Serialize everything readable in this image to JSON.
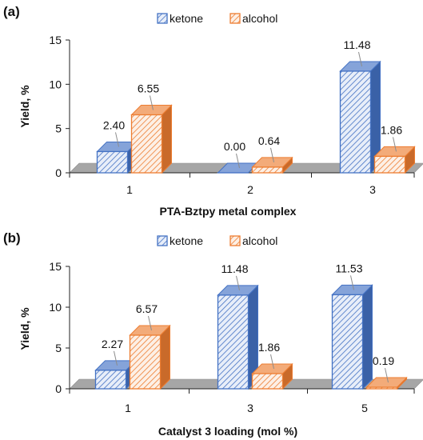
{
  "colors": {
    "ketone": "#4472C4",
    "alcohol": "#ED7D31",
    "floor": "#A6A6A6"
  },
  "chart_data": [
    {
      "type": "bar",
      "panel_label": "(a)",
      "xlabel": "PTA-Bztpy metal complex",
      "ylabel": "Yield, %",
      "ylim": [
        0,
        15
      ],
      "yticks": [
        "0",
        "5",
        "10",
        "15"
      ],
      "categories": [
        "1",
        "2",
        "3"
      ],
      "legend_position": "top-center",
      "series": [
        {
          "name": "ketone",
          "values": [
            2.4,
            0.0,
            11.48
          ],
          "labels": [
            "2.40",
            "0.00",
            "11.48"
          ]
        },
        {
          "name": "alcohol",
          "values": [
            6.55,
            0.64,
            1.86
          ],
          "labels": [
            "6.55",
            "0.64",
            "1.86"
          ]
        }
      ]
    },
    {
      "type": "bar",
      "panel_label": "(b)",
      "xlabel": "Catalyst 3 loading (mol %)",
      "ylabel": "Yield, %",
      "ylim": [
        0,
        15
      ],
      "yticks": [
        "0",
        "5",
        "10",
        "15"
      ],
      "categories": [
        "1",
        "3",
        "5"
      ],
      "legend_position": "top-center",
      "series": [
        {
          "name": "ketone",
          "values": [
            2.27,
            11.48,
            11.53
          ],
          "labels": [
            "2.27",
            "11.48",
            "11.53"
          ]
        },
        {
          "name": "alcohol",
          "values": [
            6.57,
            1.86,
            0.19
          ],
          "labels": [
            "6.57",
            "1.86",
            "0.19"
          ]
        }
      ]
    }
  ]
}
